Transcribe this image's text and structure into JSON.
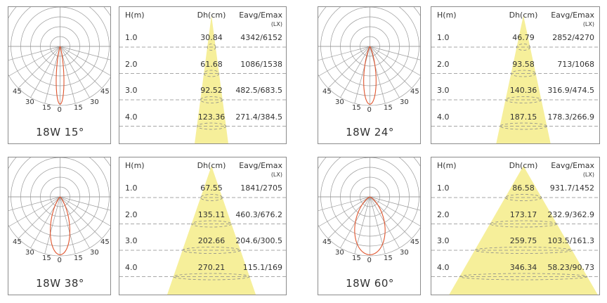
{
  "colors": {
    "beam": "#f6ef9a",
    "curve": "#e0552e",
    "grid": "#9a9a9a",
    "dash": "#8a8a8a",
    "border": "#8c8c8c"
  },
  "headers": {
    "h": "H(m)",
    "dh": "Dh(cm)",
    "e": "Eavg/Emax",
    "unit": "(LX)"
  },
  "polar_angles": [
    "45",
    "30",
    "15",
    "0",
    "15",
    "30",
    "45"
  ],
  "charts": [
    {
      "title": "18W 15°",
      "beam_angle_deg": 15,
      "rows": [
        {
          "h": "1.0",
          "dh": "30.84",
          "e": "4342/6152"
        },
        {
          "h": "2.0",
          "dh": "61.68",
          "e": "1086/1538"
        },
        {
          "h": "3.0",
          "dh": "92.52",
          "e": "482.5/683.5"
        },
        {
          "h": "4.0",
          "dh": "123.36",
          "e": "271.4/384.5"
        }
      ]
    },
    {
      "title": "18W 24°",
      "beam_angle_deg": 24,
      "rows": [
        {
          "h": "1.0",
          "dh": "46.79",
          "e": "2852/4270"
        },
        {
          "h": "2.0",
          "dh": "93.58",
          "e": "713/1068"
        },
        {
          "h": "3.0",
          "dh": "140.36",
          "e": "316.9/474.5"
        },
        {
          "h": "4.0",
          "dh": "187.15",
          "e": "178.3/266.9"
        }
      ]
    },
    {
      "title": "18W 38°",
      "beam_angle_deg": 38,
      "rows": [
        {
          "h": "1.0",
          "dh": "67.55",
          "e": "1841/2705"
        },
        {
          "h": "2.0",
          "dh": "135.11",
          "e": "460.3/676.2"
        },
        {
          "h": "3.0",
          "dh": "202.66",
          "e": "204.6/300.5"
        },
        {
          "h": "4.0",
          "dh": "270.21",
          "e": "115.1/169"
        }
      ]
    },
    {
      "title": "18W 60°",
      "beam_angle_deg": 60,
      "rows": [
        {
          "h": "1.0",
          "dh": "86.58",
          "e": "931.7/1452"
        },
        {
          "h": "2.0",
          "dh": "173.17",
          "e": "232.9/362.9"
        },
        {
          "h": "3.0",
          "dh": "259.75",
          "e": "103.5/161.3"
        },
        {
          "h": "4.0",
          "dh": "346.34",
          "e": "58.23/90.73"
        }
      ]
    }
  ]
}
